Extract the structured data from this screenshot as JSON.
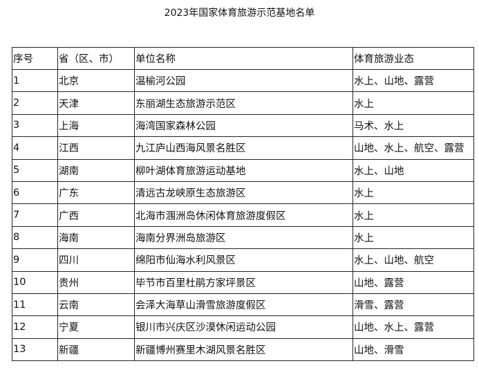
{
  "title": "2023年国家体育旅游示范基地名单",
  "headers": [
    "序号",
    "省（区、市）",
    "单位名称",
    "体育旅游业态"
  ],
  "rows": [
    [
      "1",
      "北京",
      "温榆河公园",
      "水上、山地、露营"
    ],
    [
      "2",
      "天津",
      "东丽湖生态旅游示范区",
      "水上"
    ],
    [
      "3",
      "上海",
      "海湾国家森林公园",
      "马术、水上"
    ],
    [
      "4",
      "江西",
      "九江庐山西海风景名胜区",
      "山地、水上、航空、露营"
    ],
    [
      "5",
      "湖南",
      "柳叶湖体育旅游运动基地",
      "水上、山地"
    ],
    [
      "6",
      "广东",
      "清远古龙峡原生态旅游区",
      "水上"
    ],
    [
      "7",
      "广西",
      "北海市涠洲岛休闲体育旅游度假区",
      "水上"
    ],
    [
      "8",
      "海南",
      "海南分界洲岛旅游区",
      "水上"
    ],
    [
      "9",
      "四川",
      "绵阳市仙海水利风景区",
      "水上、山地、航空"
    ],
    [
      "10",
      "贵州",
      "毕节市百里杜鹃方家坪景区",
      "山地、露营"
    ],
    [
      "11",
      "云南",
      "会泽大海草山滑雪旅游度假区",
      "滑雪、露营"
    ],
    [
      "12",
      "宁夏",
      "银川市兴庆区沙漠休闲运动公园",
      "山地、水上、露营"
    ],
    [
      "13",
      "新疆",
      "新疆博州赛里木湖风景名胜区",
      "山地、滑雪"
    ]
  ]
}
